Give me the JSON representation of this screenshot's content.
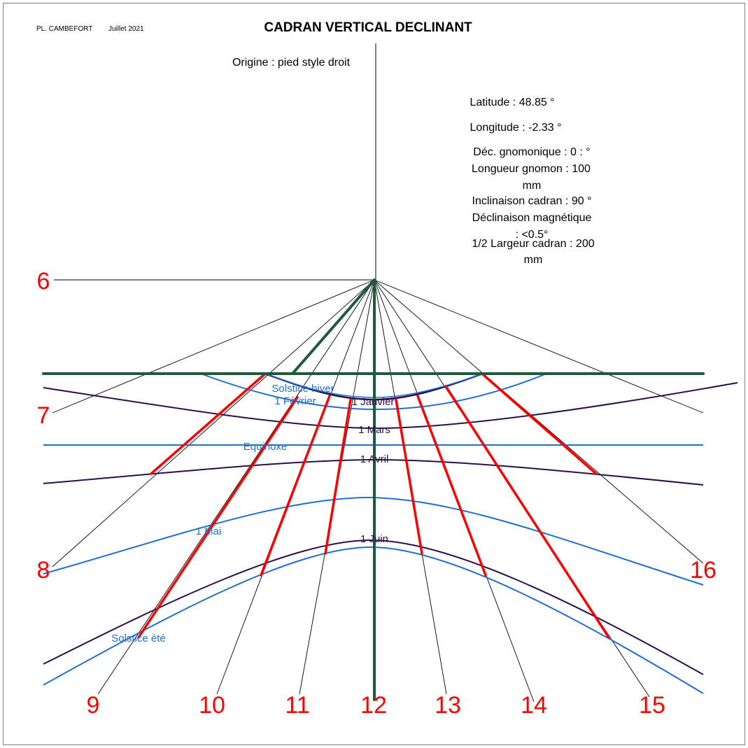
{
  "header": {
    "author": "PL. CAMBEFORT",
    "date": "Juillet 2021",
    "title": "CADRAN VERTICAL DECLINANT",
    "origin_note": "Origine : pied style droit"
  },
  "parameters": {
    "latitude": "Latitude : 48.85 °",
    "longitude": "Longitude : -2.33 °",
    "dec_gnomonique": "Déc. gnomonique  : 0 : °",
    "longueur_gnomon_1": "Longueur gnomon : 100",
    "longueur_gnomon_2": "mm",
    "inclinaison": "Inclinaison cadran : 90 °",
    "declinaison_mag_1": "Déclinaison magnétique",
    "declinaison_mag_2": ": <0.5°",
    "demi_largeur_1": "1/2 Largeur cadran : 200",
    "demi_largeur_2": "mm"
  },
  "hours": [
    "6",
    "7",
    "8",
    "9",
    "10",
    "11",
    "12",
    "13",
    "14",
    "15",
    "16"
  ],
  "date_labels": {
    "solstice_hiver": "Solstice hiver",
    "fevrier": "1 Février",
    "janvier": "1 Janvier",
    "mars": "1 Mars",
    "equinoxe": "Equinoxe",
    "avril": "1 Avril",
    "mai": "1 Mai",
    "juin": "1 Juin",
    "solstice_ete": "Solstice été"
  },
  "colors": {
    "hour_line_red": "#ff0000",
    "style_green": "#1e5b3c",
    "date_line_blue": "#1f6fd0",
    "date_line_dark": "#2a0f4a",
    "thin_line": "#000000"
  }
}
